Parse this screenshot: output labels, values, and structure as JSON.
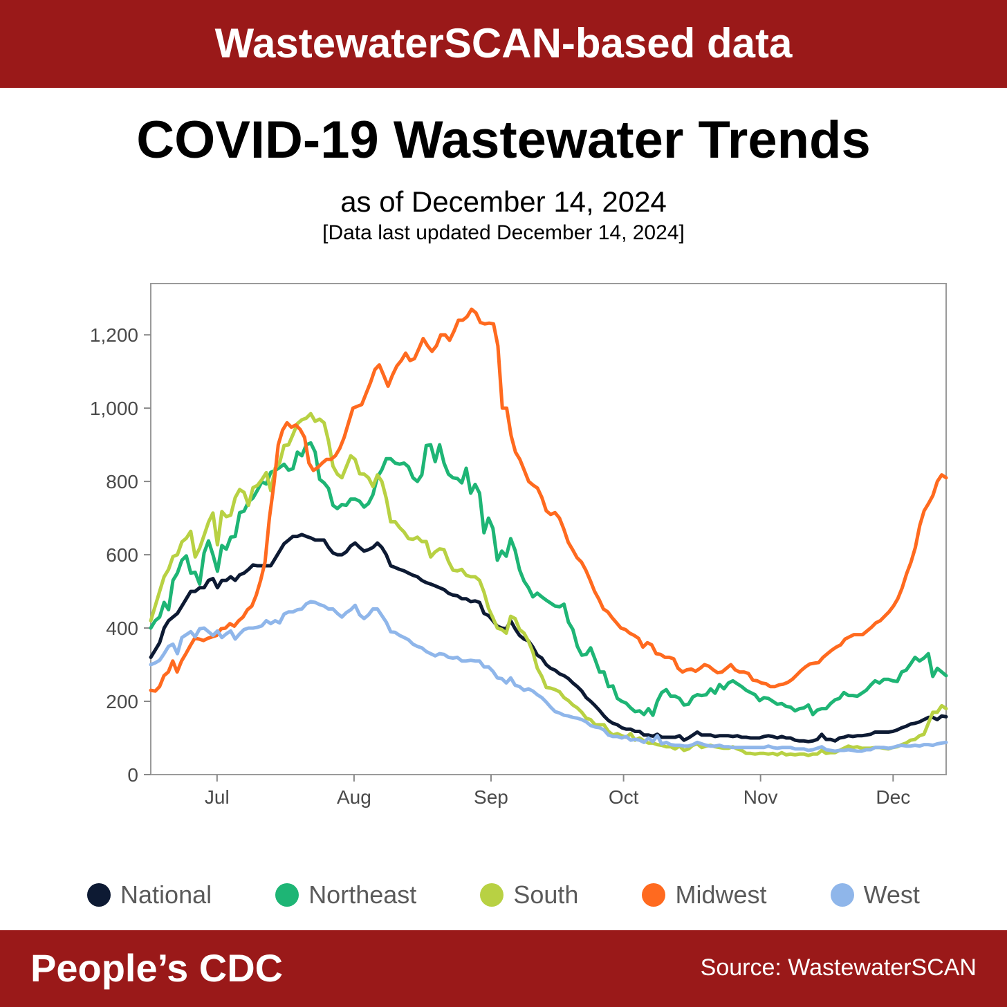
{
  "header": {
    "title": "WastewaterSCAN-based data"
  },
  "main": {
    "title": "COVID-19 Wastewater Trends",
    "subtitle": "as of December 14, 2024",
    "update_note": "[Data last updated December 14, 2024]"
  },
  "chart": {
    "type": "line",
    "background_color": "#ffffff",
    "plot_border_color": "#9a9a9a",
    "axis_tick_color": "#888888",
    "axis_label_color": "#4a4a4a",
    "axis_label_fontsize": 28,
    "line_width": 5,
    "x": {
      "min": 0,
      "max": 180,
      "tick_positions": [
        15,
        46,
        77,
        107,
        138,
        168
      ],
      "tick_labels": [
        "Jul",
        "Aug",
        "Sep",
        "Oct",
        "Nov",
        "Dec"
      ]
    },
    "y": {
      "min": 0,
      "max": 1340,
      "tick_positions": [
        0,
        200,
        400,
        600,
        800,
        1000,
        1200
      ],
      "tick_labels": [
        "0",
        "200",
        "400",
        "600",
        "800",
        "1,000",
        "1,200"
      ]
    },
    "series": [
      {
        "name": "National",
        "color": "#0d1a33",
        "values": [
          320,
          340,
          360,
          400,
          420,
          430,
          440,
          460,
          480,
          500,
          500,
          510,
          510,
          530,
          535,
          510,
          530,
          530,
          540,
          530,
          545,
          550,
          560,
          572,
          570,
          570,
          570,
          570,
          590,
          610,
          630,
          640,
          650,
          650,
          655,
          650,
          646,
          640,
          640,
          640,
          620,
          605,
          600,
          600,
          608,
          624,
          632,
          620,
          610,
          614,
          620,
          632,
          620,
          600,
          570,
          565,
          560,
          556,
          550,
          544,
          540,
          530,
          524,
          520,
          515,
          510,
          505,
          495,
          490,
          488,
          480,
          480,
          472,
          474,
          470,
          440,
          434,
          420,
          405,
          400,
          398,
          420,
          398,
          380,
          370,
          365,
          348,
          326,
          318,
          300,
          290,
          285,
          275,
          270,
          262,
          250,
          240,
          228,
          210,
          200,
          188,
          175,
          160,
          148,
          140,
          136,
          128,
          124,
          124,
          118,
          118,
          108,
          108,
          105,
          110,
          102,
          102,
          102,
          102,
          106,
          94,
          100,
          108,
          116,
          108,
          108,
          108,
          104,
          106,
          106,
          106,
          104,
          106,
          102,
          102,
          100,
          100,
          100,
          104,
          106,
          104,
          100,
          104,
          100,
          100,
          94,
          92,
          92,
          90,
          92,
          96,
          110,
          96,
          96,
          92,
          100,
          102,
          106,
          104,
          106,
          106,
          108,
          110,
          116,
          116,
          116,
          116,
          118,
          122,
          128,
          132,
          138,
          140,
          144,
          150,
          156,
          156,
          150,
          160,
          158
        ]
      },
      {
        "name": "Northeast",
        "color": "#1eb575",
        "values": [
          400,
          420,
          430,
          470,
          450,
          530,
          550,
          585,
          597,
          550,
          552,
          520,
          605,
          638,
          600,
          555,
          625,
          615,
          648,
          650,
          715,
          719,
          745,
          755,
          776,
          799,
          793,
          825,
          830,
          838,
          847,
          831,
          835,
          880,
          870,
          900,
          905,
          880,
          806,
          796,
          781,
          735,
          726,
          737,
          735,
          752,
          752,
          746,
          730,
          740,
          764,
          812,
          832,
          862,
          862,
          850,
          847,
          850,
          840,
          810,
          800,
          818,
          898,
          900,
          854,
          900,
          850,
          820,
          810,
          808,
          796,
          836,
          768,
          792,
          768,
          660,
          700,
          672,
          585,
          610,
          596,
          644,
          612,
          559,
          528,
          510,
          485,
          495,
          485,
          476,
          468,
          460,
          458,
          465,
          416,
          396,
          350,
          326,
          328,
          346,
          314,
          280,
          280,
          240,
          242,
          208,
          200,
          195,
          182,
          172,
          174,
          164,
          180,
          162,
          200,
          224,
          232,
          214,
          214,
          208,
          190,
          192,
          212,
          218,
          216,
          218,
          234,
          222,
          246,
          234,
          250,
          256,
          248,
          240,
          230,
          224,
          218,
          202,
          210,
          208,
          200,
          192,
          194,
          186,
          184,
          174,
          180,
          182,
          190,
          164,
          176,
          180,
          180,
          194,
          204,
          208,
          224,
          216,
          216,
          214,
          222,
          230,
          244,
          256,
          250,
          260,
          260,
          256,
          254,
          280,
          285,
          302,
          320,
          310,
          318,
          330,
          268,
          290,
          280,
          270
        ]
      },
      {
        "name": "South",
        "color": "#b8d143",
        "values": [
          420,
          460,
          500,
          540,
          560,
          595,
          600,
          635,
          645,
          664,
          594,
          618,
          653,
          689,
          714,
          627,
          718,
          704,
          708,
          756,
          778,
          770,
          735,
          783,
          789,
          805,
          824,
          775,
          836,
          851,
          898,
          900,
          928,
          958,
          968,
          973,
          985,
          964,
          970,
          960,
          910,
          842,
          820,
          810,
          840,
          870,
          860,
          821,
          820,
          810,
          786,
          818,
          800,
          754,
          690,
          690,
          674,
          662,
          644,
          642,
          648,
          636,
          636,
          594,
          608,
          616,
          614,
          582,
          558,
          556,
          560,
          544,
          540,
          540,
          530,
          498,
          454,
          428,
          400,
          396,
          386,
          432,
          426,
          396,
          386,
          364,
          334,
          290,
          268,
          238,
          236,
          232,
          226,
          210,
          202,
          190,
          182,
          170,
          154,
          150,
          136,
          136,
          136,
          118,
          108,
          112,
          106,
          102,
          112,
          94,
          100,
          92,
          86,
          86,
          82,
          80,
          76,
          76,
          70,
          78,
          66,
          70,
          80,
          84,
          74,
          78,
          80,
          76,
          74,
          72,
          72,
          76,
          70,
          66,
          58,
          58,
          56,
          58,
          58,
          56,
          58,
          54,
          60,
          54,
          56,
          54,
          56,
          56,
          52,
          56,
          56,
          66,
          58,
          60,
          60,
          66,
          72,
          78,
          74,
          76,
          72,
          72,
          72,
          74,
          74,
          72,
          70,
          74,
          76,
          82,
          86,
          94,
          96,
          106,
          110,
          140,
          170,
          170,
          188,
          180
        ]
      },
      {
        "name": "Midwest",
        "color": "#ff6a1f",
        "values": [
          230,
          228,
          240,
          270,
          280,
          310,
          280,
          310,
          330,
          352,
          372,
          370,
          366,
          372,
          376,
          380,
          398,
          400,
          412,
          405,
          420,
          430,
          450,
          460,
          490,
          530,
          580,
          700,
          790,
          900,
          940,
          960,
          948,
          954,
          942,
          920,
          850,
          830,
          838,
          850,
          860,
          860,
          870,
          890,
          920,
          960,
          1000,
          1005,
          1010,
          1040,
          1070,
          1105,
          1118,
          1090,
          1060,
          1090,
          1115,
          1130,
          1150,
          1130,
          1135,
          1162,
          1190,
          1170,
          1155,
          1170,
          1200,
          1200,
          1185,
          1210,
          1240,
          1240,
          1250,
          1270,
          1260,
          1234,
          1230,
          1232,
          1230,
          1170,
          1000,
          1000,
          925,
          880,
          860,
          830,
          800,
          790,
          782,
          756,
          720,
          710,
          715,
          700,
          670,
          634,
          614,
          592,
          580,
          558,
          530,
          500,
          478,
          452,
          444,
          428,
          414,
          400,
          396,
          386,
          380,
          372,
          348,
          360,
          354,
          330,
          328,
          320,
          320,
          316,
          290,
          280,
          286,
          288,
          282,
          290,
          300,
          296,
          286,
          278,
          280,
          290,
          300,
          286,
          280,
          280,
          276,
          258,
          256,
          250,
          248,
          240,
          240,
          245,
          247,
          252,
          260,
          272,
          284,
          294,
          302,
          304,
          306,
          320,
          330,
          340,
          348,
          354,
          370,
          376,
          382,
          382,
          382,
          392,
          402,
          414,
          420,
          432,
          444,
          460,
          480,
          510,
          548,
          580,
          620,
          680,
          720,
          740,
          762,
          800,
          818,
          810
        ]
      },
      {
        "name": "West",
        "color": "#8fb6ea",
        "values": [
          300,
          305,
          312,
          330,
          350,
          356,
          330,
          374,
          382,
          390,
          376,
          398,
          400,
          390,
          380,
          392,
          374,
          384,
          392,
          370,
          384,
          396,
          400,
          400,
          402,
          406,
          420,
          412,
          420,
          414,
          438,
          444,
          444,
          450,
          452,
          466,
          472,
          470,
          464,
          460,
          452,
          452,
          440,
          430,
          442,
          450,
          462,
          436,
          426,
          436,
          452,
          452,
          434,
          416,
          390,
          388,
          380,
          374,
          368,
          356,
          350,
          346,
          336,
          330,
          324,
          330,
          328,
          320,
          318,
          320,
          310,
          310,
          312,
          310,
          310,
          294,
          294,
          282,
          264,
          262,
          250,
          264,
          244,
          240,
          230,
          234,
          228,
          218,
          210,
          198,
          184,
          172,
          168,
          162,
          160,
          156,
          154,
          150,
          144,
          134,
          130,
          128,
          122,
          108,
          104,
          104,
          100,
          104,
          94,
          96,
          94,
          88,
          100,
          90,
          106,
          84,
          88,
          82,
          80,
          80,
          78,
          78,
          82,
          88,
          84,
          80,
          78,
          78,
          80,
          76,
          76,
          74,
          74,
          74,
          74,
          74,
          74,
          74,
          74,
          78,
          74,
          72,
          74,
          74,
          74,
          70,
          70,
          70,
          66,
          68,
          72,
          76,
          68,
          66,
          64,
          66,
          66,
          68,
          66,
          64,
          64,
          68,
          68,
          74,
          74,
          74,
          72,
          74,
          78,
          80,
          78,
          78,
          80,
          78,
          82,
          82,
          80,
          84,
          86,
          88
        ]
      }
    ]
  },
  "legend": {
    "items": [
      {
        "label": "National",
        "color": "#0d1a33"
      },
      {
        "label": "Northeast",
        "color": "#1eb575"
      },
      {
        "label": "South",
        "color": "#b8d143"
      },
      {
        "label": "Midwest",
        "color": "#ff6a1f"
      },
      {
        "label": "West",
        "color": "#8fb6ea"
      }
    ],
    "label_color": "#5a5a5a",
    "dot_radius": 17
  },
  "footer": {
    "left": "People’s CDC",
    "source_label": "Source: WastewaterSCAN"
  },
  "colors": {
    "band_bg": "#9a1919",
    "band_text": "#ffffff",
    "page_bg": "#ffffff",
    "body_text": "#000000"
  }
}
